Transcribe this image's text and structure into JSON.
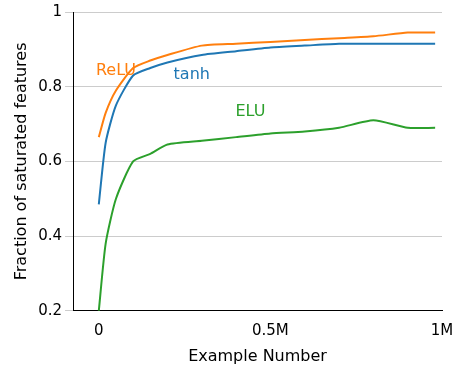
{
  "chart_data": {
    "type": "line",
    "x_label": "Example Number",
    "y_label": "Fraction of saturated features",
    "x": [
      0,
      20000,
      50000,
      100000,
      150000,
      200000,
      300000,
      400000,
      500000,
      600000,
      700000,
      800000,
      900000,
      980000
    ],
    "series": [
      {
        "name": "ReLU",
        "color": "#ff7f0e",
        "values": [
          0.665,
          0.73,
          0.79,
          0.85,
          0.87,
          0.885,
          0.91,
          0.915,
          0.92,
          0.925,
          0.93,
          0.935,
          0.945,
          0.945
        ]
      },
      {
        "name": "tanh",
        "color": "#1f77b4",
        "values": [
          0.485,
          0.65,
          0.75,
          0.83,
          0.85,
          0.865,
          0.885,
          0.895,
          0.905,
          0.91,
          0.915,
          0.915,
          0.915,
          0.915
        ]
      },
      {
        "name": "ELU",
        "color": "#2ca02c",
        "values": [
          0.2,
          0.38,
          0.5,
          0.6,
          0.62,
          0.645,
          0.655,
          0.665,
          0.675,
          0.68,
          0.69,
          0.71,
          0.69,
          0.69
        ]
      }
    ],
    "xlim": [
      -75000,
      1000000
    ],
    "xticks": [
      0,
      {
        "value": 500000,
        "label": "0.5M"
      },
      {
        "value": 1000000,
        "label": "1M"
      }
    ],
    "ylim": [
      0.2,
      1
    ],
    "yticks": [
      0.2,
      0.4,
      0.6,
      0.8,
      1
    ],
    "grid": true
  }
}
